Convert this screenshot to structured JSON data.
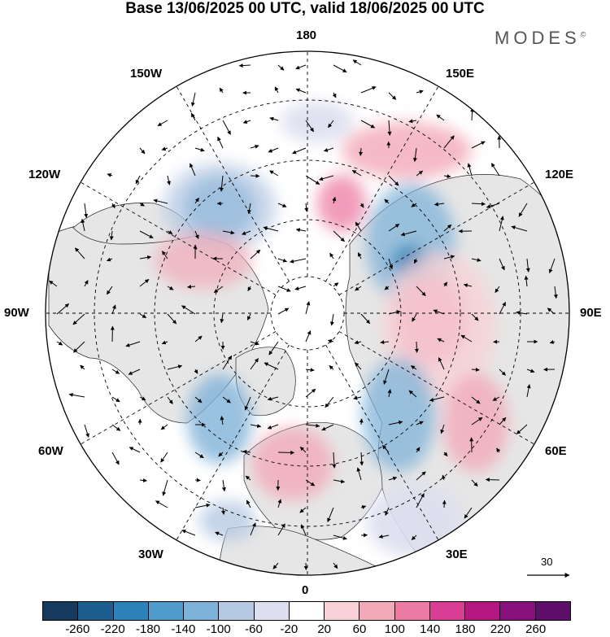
{
  "header": {
    "title": "Base 13/06/2025 00 UTC, valid 18/06/2025 00 UTC",
    "brand": "MODES",
    "brand_mark": "©"
  },
  "map": {
    "projection": "north-polar-stereographic",
    "longitude_labels": [
      "180",
      "150E",
      "120E",
      "90E",
      "60E",
      "30E",
      "0",
      "30W",
      "60W",
      "90W",
      "120W",
      "150W"
    ],
    "reference_vector": "30"
  },
  "colorbar": {
    "ticks": [
      "-260",
      "-220",
      "-180",
      "-140",
      "-100",
      "-60",
      "-20",
      "20",
      "60",
      "100",
      "140",
      "180",
      "220",
      "260"
    ],
    "colors": [
      "#163a5e",
      "#1c5f8f",
      "#2a82b8",
      "#4f9ccb",
      "#7fb2d8",
      "#b6c9e2",
      "#dddff0",
      "#ffffff",
      "#f8d2d6",
      "#f2a9b8",
      "#ec7ba3",
      "#d83f94",
      "#b4177f",
      "#87117c",
      "#5e0d6b"
    ]
  }
}
